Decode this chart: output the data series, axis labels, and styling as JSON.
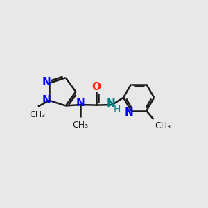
{
  "bg_color": "#e8e8e8",
  "bond_color": "#1a1a1a",
  "N_color": "#0000ff",
  "O_color": "#ff2000",
  "NH_color": "#008080",
  "line_width": 1.8,
  "font_size_atom": 11,
  "font_size_label": 9,
  "xlim": [
    0,
    10
  ],
  "ylim": [
    0,
    10
  ]
}
